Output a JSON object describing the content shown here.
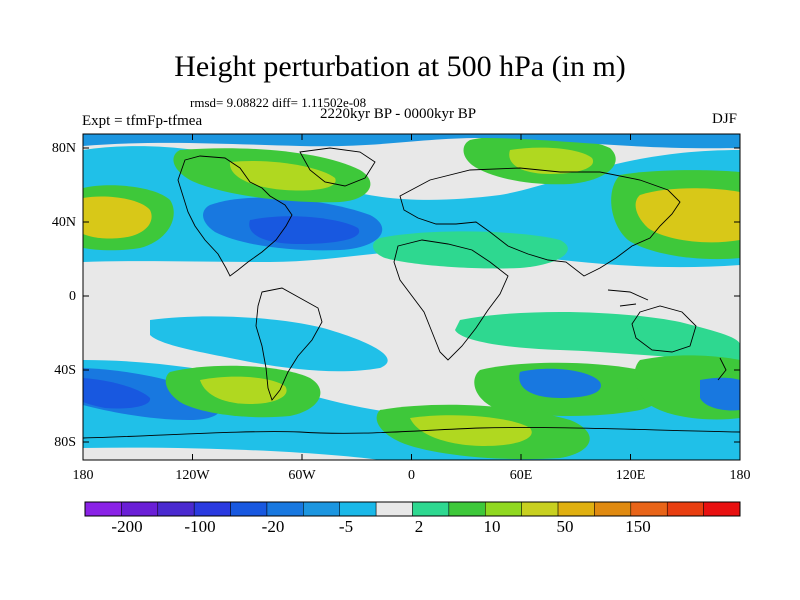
{
  "title": "Height perturbation at 500 hPa (in m)",
  "stats": "rmsd= 9.08822 diff= 1.11502e-08",
  "experiment": "Expt = tfmFp-tfmea",
  "period": "2220kyr BP - 0000kyr BP",
  "season": "DJF",
  "lat_labels": [
    "80N",
    "40N",
    "0",
    "40S",
    "80S"
  ],
  "lon_labels": [
    "180",
    "120W",
    "60W",
    "0",
    "60E",
    "120E",
    "180"
  ],
  "colorbar": {
    "labels": [
      "-200",
      "-100",
      "-20",
      "-5",
      "2",
      "10",
      "50",
      "150"
    ],
    "colors": [
      "#8a22e6",
      "#6a1fd6",
      "#4a2ad0",
      "#2a3ae0",
      "#1858e0",
      "#1878e0",
      "#1c96e0",
      "#1ab8e8",
      "#e8e8e8",
      "#2ed890",
      "#3ec83a",
      "#90d820",
      "#c8d020",
      "#e0b010",
      "#e08a10",
      "#e86418",
      "#e83e10",
      "#e81010"
    ]
  },
  "palette": {
    "neutral": "#e8e8e8",
    "light_blue": "#20c0e8",
    "mid_blue": "#1c96e0",
    "blue": "#1878e0",
    "dark_blue": "#1858e0",
    "teal": "#2ed890",
    "green": "#3ec83a",
    "yellow_green": "#b0d820",
    "yellow": "#d8c818"
  }
}
